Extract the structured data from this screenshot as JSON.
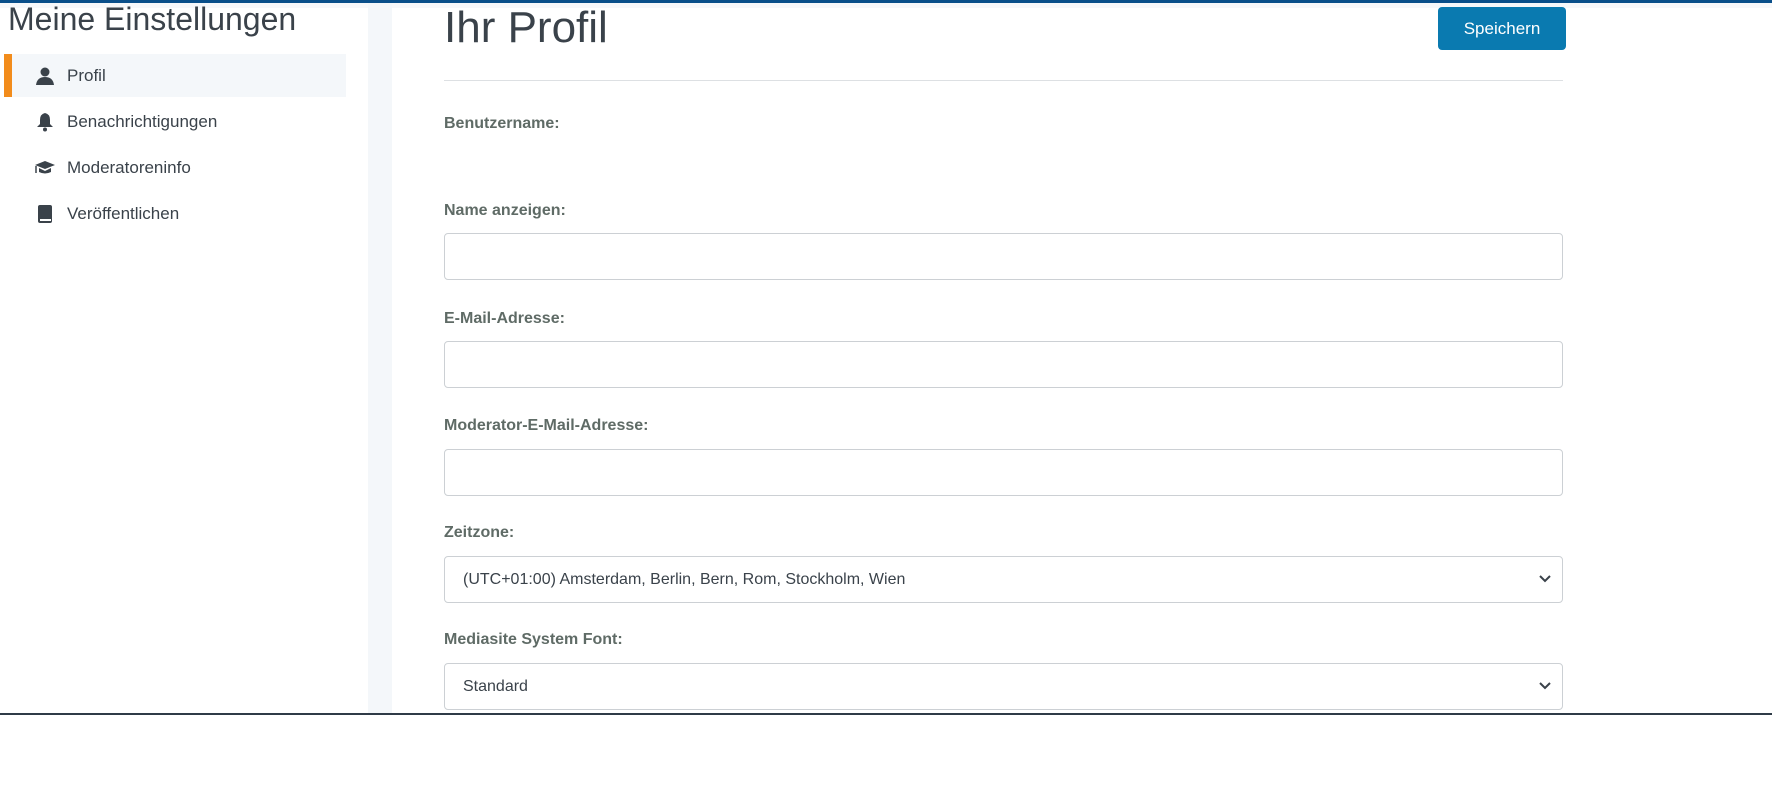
{
  "sidebar": {
    "title": "Meine Einstellungen",
    "items": [
      {
        "label": "Profil",
        "icon": "user-icon",
        "active": true
      },
      {
        "label": "Benachrichtigungen",
        "icon": "bell-icon"
      },
      {
        "label": "Moderatoreninfo",
        "icon": "graduation-cap-icon"
      },
      {
        "label": "Veröffentlichen",
        "icon": "book-icon"
      }
    ]
  },
  "main": {
    "title": "Ihr Profil",
    "save_label": "Speichern",
    "accent": "#0a7ab0",
    "fields": {
      "username_label": "Benutzername:",
      "display_name_label": "Name anzeigen:",
      "email_label": "E-Mail-Adresse:",
      "moderator_email_label": "Moderator-E-Mail-Adresse:",
      "timezone_label": "Zeitzone:",
      "timezone_value": "(UTC+01:00) Amsterdam, Berlin, Bern, Rom, Stockholm, Wien",
      "font_label": "Mediasite System Font:",
      "font_value": "Standard"
    }
  }
}
